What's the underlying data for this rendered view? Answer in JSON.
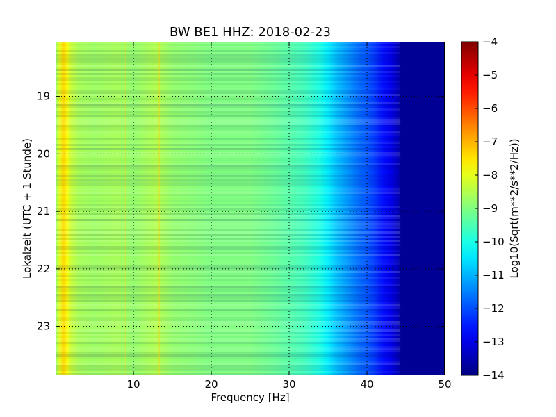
{
  "chart_data": {
    "type": "heatmap",
    "title": "BW BE1 HHZ: 2018-02-23",
    "xlabel": "Frequency [Hz]",
    "ylabel": "Lokalzeit (UTC + 1 Stunde)",
    "colorbar_label": "Log10(Sqrt(m**2/s**2/Hz))",
    "colormap": "jet",
    "xlim": [
      0,
      50
    ],
    "ylim": [
      18.05,
      23.85
    ],
    "y_inverted": true,
    "grid": true,
    "x_ticks": [
      10,
      20,
      30,
      40,
      50
    ],
    "y_ticks": [
      19,
      20,
      21,
      22,
      23
    ],
    "clim": [
      -14,
      -4
    ],
    "colorbar_ticks": [
      -4,
      -5,
      -6,
      -7,
      -8,
      -9,
      -10,
      -11,
      -12,
      -13,
      -14
    ],
    "colorbar_tick_labels": [
      "−4",
      "−5",
      "−6",
      "−7",
      "−8",
      "−9",
      "−10",
      "−11",
      "−12",
      "−13",
      "−14"
    ],
    "spectrum_profile": {
      "frequency_hz": [
        0,
        0.5,
        1,
        1.5,
        2,
        3,
        5,
        8,
        10,
        13,
        15,
        20,
        25,
        28,
        30,
        32,
        33,
        34,
        35,
        36,
        37,
        38,
        39,
        40,
        41,
        42,
        43,
        44,
        44.5,
        45,
        50
      ],
      "log10_value": [
        -8.8,
        -8.0,
        -7.4,
        -7.8,
        -8.3,
        -8.6,
        -8.7,
        -8.6,
        -8.8,
        -8.5,
        -8.8,
        -9.0,
        -9.0,
        -9.2,
        -9.4,
        -9.6,
        -9.8,
        -10.0,
        -10.4,
        -10.8,
        -11.1,
        -11.4,
        -11.7,
        -11.9,
        -12.2,
        -12.6,
        -12.9,
        -13.4,
        -14.0,
        -14.0,
        -14.0
      ]
    }
  }
}
